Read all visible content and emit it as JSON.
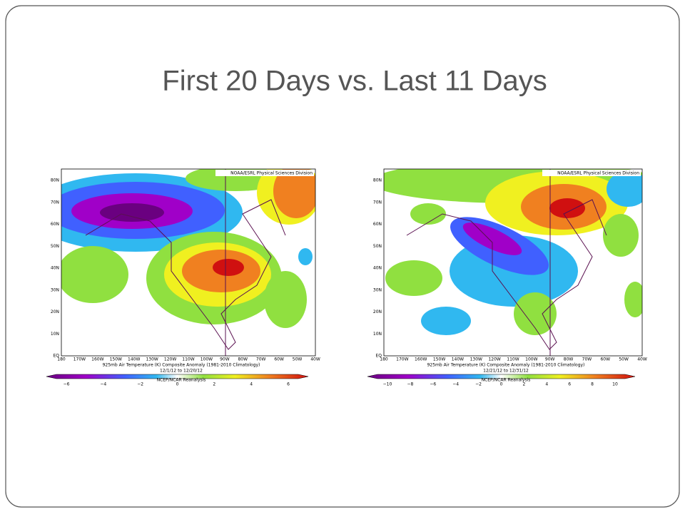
{
  "title": "First 20 Days vs. Last 11 Days",
  "maps": [
    {
      "header": "NOAA/ESRL Physical Sciences Division",
      "lat_labels": [
        "80N",
        "70N",
        "60N",
        "50N",
        "40N",
        "30N",
        "20N",
        "10N",
        "EQ"
      ],
      "lon_labels": [
        "180",
        "170W",
        "160W",
        "150W",
        "140W",
        "130W",
        "120W",
        "110W",
        "100W",
        "90W",
        "80W",
        "70W",
        "60W",
        "50W",
        "40W"
      ],
      "caption": "925mb Air Temperature (K) Composite Anomaly (1981-2010 Climatology)",
      "dates": "12/1/12 to 12/20/12",
      "source": "NCEP/NCAR Reanalysis",
      "colorbar_labels": [
        "−6",
        "−4",
        "−2",
        "0",
        "2",
        "4",
        "6"
      ]
    },
    {
      "header": "NOAA/ESRL Physical Sciences Division",
      "lat_labels": [
        "80N",
        "70N",
        "60N",
        "50N",
        "40N",
        "30N",
        "20N",
        "10N",
        "EQ"
      ],
      "lon_labels": [
        "180",
        "170W",
        "160W",
        "150W",
        "140W",
        "130W",
        "120W",
        "110W",
        "100W",
        "90W",
        "80W",
        "70W",
        "60W",
        "50W",
        "40W"
      ],
      "caption": "925mb Air Temperature (K) Composite Anomaly (1981-2010 Climatology)",
      "dates": "12/21/12 to 12/31/12",
      "source": "NCEP/NCAR Reanalysis",
      "colorbar_labels": [
        "−10",
        "−8",
        "−6",
        "−4",
        "−2",
        "0",
        "2",
        "4",
        "6",
        "8",
        "10"
      ]
    }
  ]
}
